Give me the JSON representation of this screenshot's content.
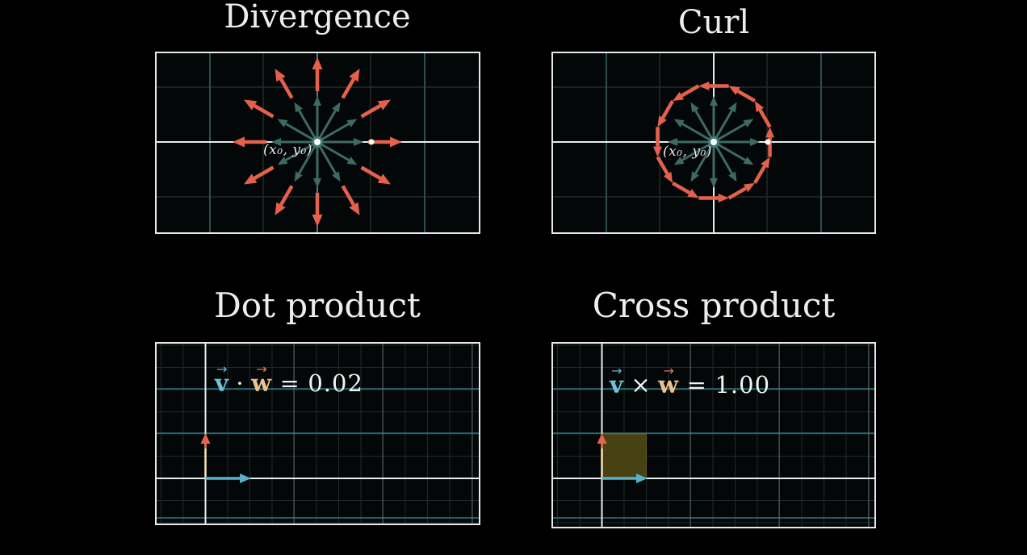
{
  "sections": {
    "divergence": {
      "title": "Divergence",
      "point_label": "(x₀, y₀)",
      "field_type": "radial arrows pointing outward from the point (positive divergence)"
    },
    "curl": {
      "title": "Curl",
      "point_label": "(x₀, y₀)",
      "field_type": "arrows rotating counterclockwise around the point (positive curl)"
    },
    "dot": {
      "title": "Dot product",
      "v": "v",
      "op": "·",
      "w": "w",
      "eq": "=",
      "value": "0.02",
      "description": "teal vector v pointing right, yellow vector w pointing up, perpendicular"
    },
    "cross": {
      "title": "Cross product",
      "v": "v",
      "op": "×",
      "w": "w",
      "eq": "=",
      "value": "1.00",
      "description": "unit square area shaded olive between v (right) and w (up)"
    }
  },
  "glyphs": {
    "vec_arrow": "→"
  },
  "colors": {
    "red_arrow": "#e4614e",
    "teal_field_arrow": "#3e6a63",
    "teal_vector": "#56b2c6",
    "yellow_shaft": "#f4e4b6",
    "red_head": "#e4654f",
    "olive_square": "#4e4613",
    "olive_edge": "#b4a14a",
    "grid_minor": "#212928",
    "grid_teal_top": "#335655",
    "grid_dark_top": "#232d2c",
    "grid_teal_bottom": "#2f7d8a",
    "grid_gray": "#7c8a8a",
    "axis_white": "#e9eded",
    "center_line_divergence": "#93acac",
    "dot_white": "#ffffff",
    "border_white": "#e8eaea",
    "title_white": "#eceeed",
    "formula_v_blue": "#6fc3da",
    "formula_w_tan": "#ecc28e",
    "formula_w_arrow": "#e07a5a"
  }
}
